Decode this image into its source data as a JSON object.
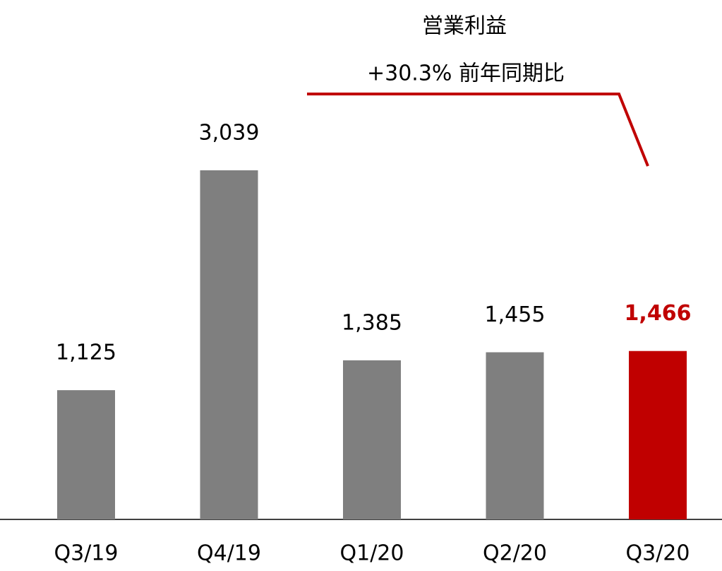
{
  "chart_data": {
    "type": "bar",
    "title": "営業利益",
    "annotation": "+30.3% 前年同期比",
    "categories": [
      "Q3/19",
      "Q4/19",
      "Q1/20",
      "Q2/20",
      "Q3/20"
    ],
    "values": [
      1125,
      3039,
      1385,
      1455,
      1466
    ],
    "value_labels": [
      "1,125",
      "3,039",
      "1,385",
      "1,455",
      "1,466"
    ],
    "colors": [
      "#7f7f7f",
      "#7f7f7f",
      "#7f7f7f",
      "#7f7f7f",
      "#c00000"
    ]
  }
}
